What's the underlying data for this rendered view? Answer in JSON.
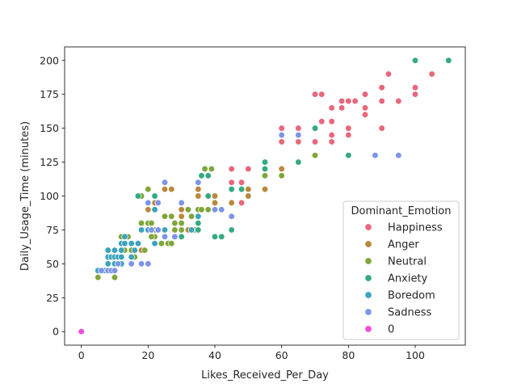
{
  "chart_data": {
    "type": "scatter",
    "xlabel": "Likes_Received_Per_Day",
    "ylabel": "Daily_Usage_Time (minutes)",
    "xlim": [
      -5,
      115
    ],
    "ylim": [
      -10,
      210
    ],
    "xticks": [
      0,
      20,
      40,
      60,
      80,
      100
    ],
    "yticks": [
      0,
      25,
      50,
      75,
      100,
      125,
      150,
      175,
      200
    ],
    "grid": false,
    "legend": {
      "title": "Dominant_Emotion",
      "placement": "lower-right"
    },
    "series": [
      {
        "name": "Happiness",
        "color": "#e8677c",
        "points": [
          [
            45,
            120
          ],
          [
            45,
            110
          ],
          [
            48,
            110
          ],
          [
            50,
            120
          ],
          [
            50,
            105
          ],
          [
            45,
            95
          ],
          [
            48,
            95
          ],
          [
            60,
            150
          ],
          [
            60,
            145
          ],
          [
            60,
            140
          ],
          [
            65,
            150
          ],
          [
            65,
            140
          ],
          [
            70,
            175
          ],
          [
            70,
            150
          ],
          [
            70,
            140
          ],
          [
            72,
            175
          ],
          [
            72,
            155
          ],
          [
            75,
            165
          ],
          [
            75,
            155
          ],
          [
            75,
            145
          ],
          [
            75,
            140
          ],
          [
            78,
            170
          ],
          [
            78,
            165
          ],
          [
            80,
            170
          ],
          [
            80,
            150
          ],
          [
            80,
            145
          ],
          [
            82,
            170
          ],
          [
            85,
            175
          ],
          [
            85,
            165
          ],
          [
            85,
            160
          ],
          [
            90,
            180
          ],
          [
            90,
            170
          ],
          [
            90,
            150
          ],
          [
            92,
            190
          ],
          [
            95,
            170
          ],
          [
            100,
            180
          ],
          [
            100,
            175
          ],
          [
            105,
            190
          ]
        ]
      },
      {
        "name": "Anger",
        "color": "#b9883b",
        "points": [
          [
            20,
            90
          ],
          [
            22,
            95
          ],
          [
            25,
            105
          ],
          [
            27,
            105
          ],
          [
            30,
            90
          ],
          [
            30,
            85
          ],
          [
            30,
            80
          ],
          [
            32,
            75
          ],
          [
            35,
            105
          ],
          [
            35,
            100
          ],
          [
            35,
            90
          ],
          [
            38,
            90
          ],
          [
            40,
            100
          ],
          [
            40,
            95
          ],
          [
            40,
            90
          ],
          [
            42,
            90
          ],
          [
            45,
            95
          ],
          [
            50,
            105
          ],
          [
            50,
            100
          ],
          [
            55,
            105
          ],
          [
            60,
            120
          ],
          [
            20,
            75
          ],
          [
            25,
            70
          ],
          [
            28,
            75
          ],
          [
            18,
            60
          ]
        ]
      },
      {
        "name": "Neutral",
        "color": "#7fa63a",
        "points": [
          [
            5,
            40
          ],
          [
            10,
            40
          ],
          [
            12,
            70
          ],
          [
            13,
            60
          ],
          [
            14,
            70
          ],
          [
            15,
            60
          ],
          [
            16,
            55
          ],
          [
            18,
            80
          ],
          [
            19,
            60
          ],
          [
            20,
            80
          ],
          [
            20,
            105
          ],
          [
            21,
            80
          ],
          [
            22,
            75
          ],
          [
            22,
            70
          ],
          [
            24,
            65
          ],
          [
            25,
            85
          ],
          [
            25,
            70
          ],
          [
            26,
            65
          ],
          [
            27,
            85
          ],
          [
            27,
            65
          ],
          [
            28,
            80
          ],
          [
            28,
            75
          ],
          [
            30,
            80
          ],
          [
            30,
            75
          ],
          [
            32,
            90
          ],
          [
            33,
            85
          ],
          [
            35,
            90
          ],
          [
            35,
            85
          ],
          [
            36,
            90
          ],
          [
            37,
            120
          ],
          [
            38,
            90
          ],
          [
            39,
            120
          ],
          [
            40,
            70
          ],
          [
            55,
            115
          ],
          [
            60,
            115
          ],
          [
            70,
            130
          ],
          [
            80,
            130
          ],
          [
            18,
            100
          ],
          [
            21,
            70
          ],
          [
            34,
            75
          ]
        ]
      },
      {
        "name": "Anxiety",
        "color": "#35a982",
        "points": [
          [
            17,
            100
          ],
          [
            22,
            100
          ],
          [
            25,
            75
          ],
          [
            30,
            70
          ],
          [
            35,
            80
          ],
          [
            35,
            75
          ],
          [
            36,
            115
          ],
          [
            38,
            115
          ],
          [
            38,
            100
          ],
          [
            40,
            70
          ],
          [
            42,
            70
          ],
          [
            45,
            75
          ],
          [
            45,
            105
          ],
          [
            48,
            105
          ],
          [
            55,
            125
          ],
          [
            55,
            120
          ],
          [
            65,
            125
          ],
          [
            70,
            150
          ],
          [
            80,
            130
          ],
          [
            100,
            200
          ],
          [
            110,
            200
          ]
        ]
      },
      {
        "name": "Boredom",
        "color": "#3ba3bd",
        "points": [
          [
            5,
            45
          ],
          [
            7,
            45
          ],
          [
            8,
            60
          ],
          [
            8,
            55
          ],
          [
            8,
            50
          ],
          [
            9,
            55
          ],
          [
            10,
            60
          ],
          [
            10,
            55
          ],
          [
            10,
            50
          ],
          [
            11,
            55
          ],
          [
            12,
            65
          ],
          [
            12,
            60
          ],
          [
            12,
            55
          ],
          [
            12,
            50
          ],
          [
            13,
            70
          ],
          [
            13,
            65
          ],
          [
            15,
            65
          ],
          [
            15,
            55
          ],
          [
            17,
            65
          ],
          [
            18,
            75
          ],
          [
            20,
            75
          ],
          [
            22,
            65
          ],
          [
            22,
            90
          ],
          [
            25,
            75
          ],
          [
            33,
            75
          ],
          [
            35,
            85
          ],
          [
            16,
            60
          ]
        ]
      },
      {
        "name": "Sadness",
        "color": "#7e94e8",
        "points": [
          [
            6,
            45
          ],
          [
            8,
            45
          ],
          [
            9,
            45
          ],
          [
            10,
            45
          ],
          [
            15,
            50
          ],
          [
            18,
            50
          ],
          [
            20,
            50
          ],
          [
            20,
            95
          ],
          [
            21,
            75
          ],
          [
            23,
            95
          ],
          [
            23,
            75
          ],
          [
            25,
            110
          ],
          [
            25,
            70
          ],
          [
            28,
            70
          ],
          [
            30,
            95
          ],
          [
            35,
            110
          ],
          [
            40,
            90
          ],
          [
            42,
            90
          ],
          [
            45,
            85
          ],
          [
            60,
            145
          ],
          [
            65,
            145
          ],
          [
            88,
            130
          ],
          [
            95,
            130
          ],
          [
            11,
            50
          ]
        ]
      },
      {
        "name": "0",
        "color": "#f14cdc",
        "points": [
          [
            0,
            0
          ]
        ]
      }
    ]
  }
}
